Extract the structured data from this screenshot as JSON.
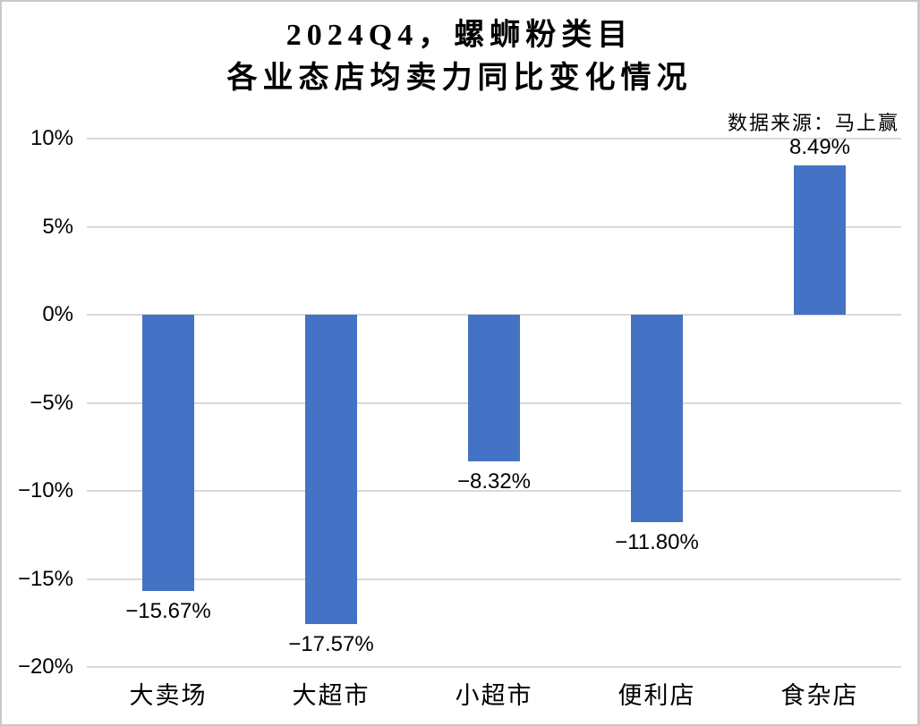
{
  "page": {
    "background": "#ffffff",
    "border_color": "#c9c9c9"
  },
  "chart_data": {
    "type": "bar",
    "title_lines": [
      "2024Q4，螺蛳粉类目",
      "各业态店均卖力同比变化情况"
    ],
    "source_note": "数据来源：马上赢",
    "categories": [
      "大卖场",
      "大超市",
      "小超市",
      "便利店",
      "食杂店"
    ],
    "values": [
      -15.67,
      -17.57,
      -8.32,
      -11.8,
      8.49
    ],
    "value_labels": [
      "−15.67%",
      "−17.57%",
      "−8.32%",
      "−11.80%",
      "8.49%"
    ],
    "yticks": [
      {
        "value": 10,
        "label": "10%"
      },
      {
        "value": 5,
        "label": "5%"
      },
      {
        "value": 0,
        "label": "0%"
      },
      {
        "value": -5,
        "label": "−5%"
      },
      {
        "value": -10,
        "label": "−10%"
      },
      {
        "value": -15,
        "label": "−15%"
      },
      {
        "value": -20,
        "label": "−20%"
      }
    ],
    "ylim": [
      -20,
      10
    ],
    "grid": "horizontal",
    "legend_position": "none",
    "bar_color": "#4472C4",
    "gridline_color": "#D9D9D9",
    "text_color": "#000000"
  }
}
